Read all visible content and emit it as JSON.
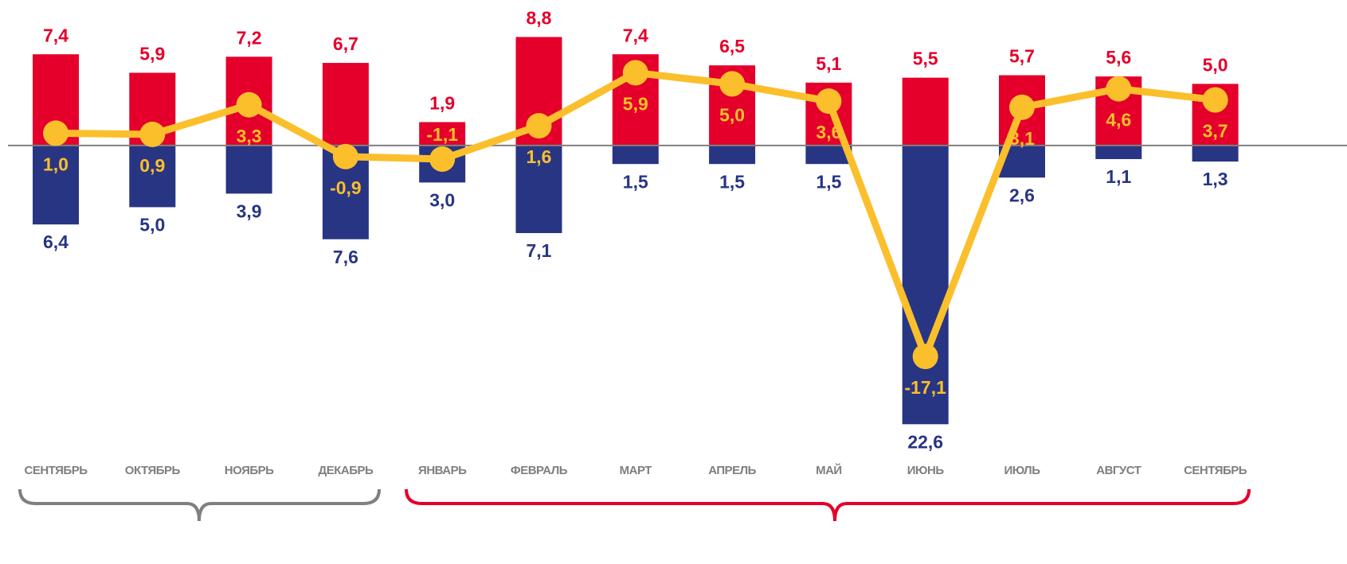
{
  "chart_data": {
    "type": "bar",
    "categories": [
      "СЕНТЯБРЬ",
      "ОКТЯБРЬ",
      "НОЯБРЬ",
      "ДЕКАБРЬ",
      "ЯНВАРЬ",
      "ФЕВРАЛЬ",
      "МАРТ",
      "АПРЕЛЬ",
      "МАЙ",
      "ИЮНЬ",
      "ИЮЛЬ",
      "АВГУСТ",
      "СЕНТЯБРЬ"
    ],
    "ylim": [
      -24,
      11.8
    ],
    "series": [
      {
        "type": "bar",
        "color": "#e4002b",
        "values": [
          7.4,
          5.9,
          7.2,
          6.7,
          1.9,
          8.8,
          7.4,
          6.5,
          5.1,
          5.5,
          5.7,
          5.6,
          5.0
        ],
        "value_labels": [
          "7,4",
          "5,9",
          "7,2",
          "6,7",
          "1,9",
          "8,8",
          "7,4",
          "6,5",
          "5,1",
          "5,5",
          "5,7",
          "5,6",
          "5,0"
        ]
      },
      {
        "type": "bar",
        "color": "#283583",
        "values": [
          -6.4,
          -5.0,
          -3.9,
          -7.6,
          -3.0,
          -7.1,
          -1.5,
          -1.5,
          -1.5,
          -22.6,
          -2.6,
          -1.1,
          -1.3
        ],
        "value_labels": [
          "6,4",
          "5,0",
          "3,9",
          "7,6",
          "3,0",
          "7,1",
          "1,5",
          "1,5",
          "1,5",
          "22,6",
          "2,6",
          "1,1",
          "1,3"
        ]
      },
      {
        "type": "line",
        "color": "#fbbf2c",
        "values": [
          1.0,
          0.9,
          3.3,
          -0.9,
          -1.1,
          1.6,
          5.9,
          5.0,
          3.6,
          -17.1,
          3.1,
          4.6,
          3.7
        ],
        "value_labels": [
          "1,0",
          "0,9",
          "3,3",
          "-0,9",
          "-1,1",
          "1,6",
          "5,9",
          "5,0",
          "3,6",
          "-17,1",
          "3,1",
          "4,6",
          "3,7"
        ]
      }
    ]
  }
}
